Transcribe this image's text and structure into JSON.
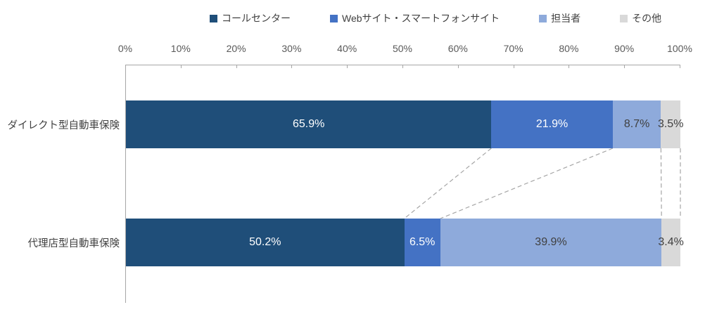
{
  "colors": {
    "axis_line": "#A6A6A6",
    "tick_label": "#595959",
    "category_label": "#404040",
    "legend_label": "#404040",
    "connector": "#A6A6A6"
  },
  "chart_data": {
    "type": "bar",
    "subtype": "horizontal-stacked-100",
    "title": "",
    "unit": "%",
    "legend_position": "top",
    "x_axis": {
      "position": "top",
      "min": 0,
      "max": 100,
      "tick_labels": [
        "0%",
        "10%",
        "20%",
        "30%",
        "40%",
        "50%",
        "60%",
        "70%",
        "80%",
        "90%",
        "100%"
      ]
    },
    "grid": false,
    "categories": [
      "ダイレクト型自動車保険",
      "代理店型自動車保険"
    ],
    "series": [
      {
        "name": "コールセンター",
        "color": "#1F4E79",
        "label_color": "#FFFFFF",
        "values": [
          65.9,
          50.2
        ]
      },
      {
        "name": "Webサイト・スマートフォンサイト",
        "color": "#4472C4",
        "label_color": "#FFFFFF",
        "values": [
          21.9,
          6.5
        ]
      },
      {
        "name": "担当者",
        "color": "#8EAADB",
        "label_color": "#404040",
        "values": [
          8.7,
          39.9
        ]
      },
      {
        "name": "その他",
        "color": "#D9D9D9",
        "label_color": "#404040",
        "values": [
          3.5,
          3.4
        ]
      }
    ],
    "data_labels": [
      [
        "65.9%",
        "21.9%",
        "8.7%",
        "3.5%"
      ],
      [
        "50.2%",
        "6.5%",
        "39.9%",
        "3.4%"
      ]
    ],
    "connector_lines": true
  }
}
